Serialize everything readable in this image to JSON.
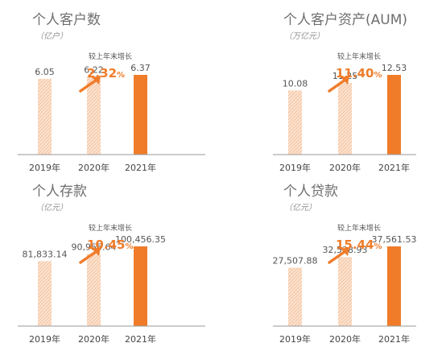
{
  "colors": {
    "accent": "#f07c2a",
    "hatch": "#f2b183",
    "axis": "#9a9a9a",
    "title": "#6e6e6e"
  },
  "chart_data": [
    {
      "type": "bar",
      "title": "个人客户数",
      "unit": "（亿户）",
      "categories": [
        "2019年",
        "2020年",
        "2021年"
      ],
      "values": [
        6.05,
        6.22,
        6.37
      ],
      "value_labels": [
        "6.05",
        "6.22",
        "6.37"
      ],
      "annotation": {
        "label": "较上年末增长",
        "value": "2.32",
        "unit": "%"
      }
    },
    {
      "type": "bar",
      "title": "个人客户资产(AUM)",
      "unit": "（万亿元）",
      "categories": [
        "2019年",
        "2020年",
        "2021年"
      ],
      "values": [
        10.08,
        11.25,
        12.53
      ],
      "value_labels": [
        "10.08",
        "11.25",
        "12.53"
      ],
      "annotation": {
        "label": "较上年末增长",
        "value": "11.40",
        "unit": "%"
      }
    },
    {
      "type": "bar",
      "title": "个人存款",
      "unit": "（亿元）",
      "categories": [
        "2019年",
        "2020年",
        "2021年"
      ],
      "values": [
        81833.14,
        90955.64,
        100456.35
      ],
      "value_labels": [
        "81,833.14",
        "90,955.64",
        "100,456.35"
      ],
      "annotation": {
        "label": "较上年末增长",
        "value": "10.45",
        "unit": "%"
      }
    },
    {
      "type": "bar",
      "title": "个人贷款",
      "unit": "（亿元）",
      "categories": [
        "2019年",
        "2020年",
        "2021年"
      ],
      "values": [
        27507.88,
        32538.93,
        37561.53
      ],
      "value_labels": [
        "27,507.88",
        "32,538.93",
        "37,561.53"
      ],
      "annotation": {
        "label": "较上年末增长",
        "value": "15.44",
        "unit": "%"
      }
    }
  ]
}
